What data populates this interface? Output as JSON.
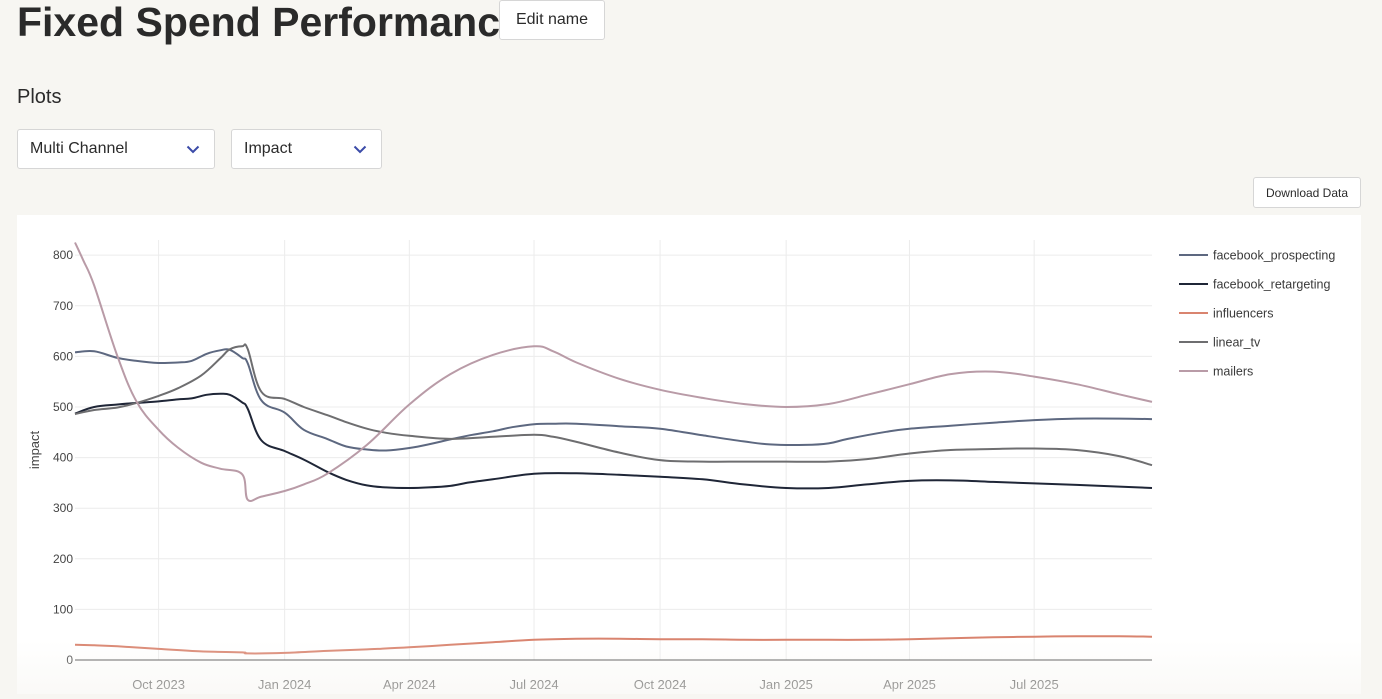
{
  "page": {
    "title": "Fixed Spend Performance",
    "edit_name_label": "Edit name",
    "plots_label": "Plots",
    "download_label": "Download Data"
  },
  "selects": {
    "plot_type": {
      "value": "Multi Channel"
    },
    "metric": {
      "value": "Impact"
    }
  },
  "colors": {
    "accent_chevron": "#3b4ba8"
  },
  "chart_data": {
    "type": "line",
    "ylabel": "impact",
    "xlabel": "",
    "ylim": [
      0,
      830
    ],
    "yticks": [
      0,
      100,
      200,
      300,
      400,
      500,
      600,
      700,
      800
    ],
    "xticks": [
      "Oct 2023",
      "Jan 2024",
      "Apr 2024",
      "Jul 2024",
      "Oct 2024",
      "Jan 2025",
      "Apr 2025",
      "Jul 2025"
    ],
    "x_range": [
      "2023-08-01",
      "2025-09-25"
    ],
    "grid": true,
    "legend_position": "right",
    "series": [
      {
        "name": "facebook_prospecting",
        "color": "#5d6880",
        "x": [
          "2023-08-01",
          "2023-08-15",
          "2023-09-01",
          "2023-09-15",
          "2023-10-01",
          "2023-10-15",
          "2023-10-25",
          "2023-11-05",
          "2023-11-15",
          "2023-11-22",
          "2023-12-01",
          "2023-12-05",
          "2023-12-15",
          "2024-01-01",
          "2024-01-15",
          "2024-02-01",
          "2024-02-15",
          "2024-03-01",
          "2024-03-15",
          "2024-04-01",
          "2024-04-15",
          "2024-05-01",
          "2024-05-15",
          "2024-06-01",
          "2024-06-15",
          "2024-07-01",
          "2024-07-15",
          "2024-08-01",
          "2024-09-01",
          "2024-10-01",
          "2024-11-01",
          "2024-12-01",
          "2024-12-20",
          "2025-01-15",
          "2025-02-01",
          "2025-02-15",
          "2025-03-15",
          "2025-04-01",
          "2025-05-01",
          "2025-06-01",
          "2025-07-01",
          "2025-08-01",
          "2025-09-01",
          "2025-09-25"
        ],
        "values": [
          608,
          610,
          597,
          591,
          587,
          588,
          591,
          605,
          612,
          613,
          597,
          587,
          513,
          489,
          455,
          437,
          422,
          416,
          414,
          419,
          426,
          436,
          444,
          452,
          460,
          466,
          467,
          467,
          462,
          457,
          444,
          432,
          426,
          425,
          428,
          437,
          451,
          457,
          463,
          469,
          474,
          477,
          477,
          476
        ]
      },
      {
        "name": "facebook_retargeting",
        "color": "#1f2637",
        "x": [
          "2023-08-01",
          "2023-08-15",
          "2023-09-01",
          "2023-09-15",
          "2023-10-01",
          "2023-10-15",
          "2023-10-25",
          "2023-11-05",
          "2023-11-15",
          "2023-11-22",
          "2023-12-01",
          "2023-12-05",
          "2023-12-15",
          "2024-01-01",
          "2024-01-15",
          "2024-02-01",
          "2024-02-15",
          "2024-03-01",
          "2024-03-15",
          "2024-04-01",
          "2024-04-15",
          "2024-05-01",
          "2024-05-15",
          "2024-06-01",
          "2024-07-01",
          "2024-08-01",
          "2024-09-01",
          "2024-10-01",
          "2024-11-01",
          "2024-12-01",
          "2025-01-01",
          "2025-02-01",
          "2025-03-01",
          "2025-04-01",
          "2025-05-01",
          "2025-06-01",
          "2025-07-01",
          "2025-08-01",
          "2025-09-25"
        ],
        "values": [
          487,
          500,
          505,
          508,
          511,
          515,
          517,
          524,
          526,
          524,
          509,
          497,
          434,
          413,
          396,
          372,
          356,
          345,
          341,
          340,
          341,
          344,
          351,
          357,
          368,
          369,
          366,
          362,
          357,
          347,
          340,
          340,
          347,
          354,
          355,
          352,
          349,
          346,
          340
        ]
      },
      {
        "name": "influencers",
        "color": "#d9846f",
        "x": [
          "2023-08-01",
          "2023-08-15",
          "2023-09-01",
          "2023-10-01",
          "2023-11-01",
          "2023-12-01",
          "2023-12-05",
          "2024-01-01",
          "2024-02-01",
          "2024-03-01",
          "2024-04-01",
          "2024-05-01",
          "2024-06-01",
          "2024-07-01",
          "2024-08-01",
          "2024-09-01",
          "2024-10-01",
          "2024-11-01",
          "2024-12-01",
          "2025-01-01",
          "2025-02-01",
          "2025-03-01",
          "2025-04-01",
          "2025-05-01",
          "2025-06-01",
          "2025-07-01",
          "2025-08-01",
          "2025-09-01",
          "2025-09-25"
        ],
        "values": [
          30,
          29,
          27,
          22,
          17,
          15,
          13,
          14,
          18,
          21,
          25,
          30,
          35,
          40,
          42,
          42,
          41,
          41,
          40,
          40,
          40,
          40,
          41,
          43,
          45,
          46,
          47,
          47,
          46
        ]
      },
      {
        "name": "linear_tv",
        "color": "#6e6e70",
        "x": [
          "2023-08-01",
          "2023-08-15",
          "2023-09-01",
          "2023-09-15",
          "2023-10-01",
          "2023-10-15",
          "2023-11-01",
          "2023-11-15",
          "2023-11-22",
          "2023-12-01",
          "2023-12-05",
          "2023-12-15",
          "2024-01-01",
          "2024-01-15",
          "2024-02-01",
          "2024-02-15",
          "2024-03-01",
          "2024-03-15",
          "2024-04-01",
          "2024-05-01",
          "2024-06-01",
          "2024-07-01",
          "2024-07-15",
          "2024-08-01",
          "2024-09-01",
          "2024-10-01",
          "2024-11-01",
          "2024-12-01",
          "2025-01-01",
          "2025-02-01",
          "2025-03-01",
          "2025-04-01",
          "2025-05-01",
          "2025-06-01",
          "2025-07-01",
          "2025-08-01",
          "2025-09-01",
          "2025-09-25"
        ],
        "values": [
          486,
          494,
          499,
          508,
          522,
          537,
          562,
          596,
          614,
          620,
          615,
          530,
          516,
          500,
          484,
          470,
          457,
          449,
          443,
          437,
          441,
          445,
          441,
          431,
          410,
          395,
          392,
          392,
          392,
          392,
          397,
          408,
          415,
          417,
          418,
          415,
          403,
          385
        ]
      },
      {
        "name": "mailers",
        "color": "#b99ba7",
        "x": [
          "2023-08-01",
          "2023-08-07",
          "2023-08-15",
          "2023-09-01",
          "2023-09-15",
          "2023-10-01",
          "2023-10-15",
          "2023-11-01",
          "2023-11-15",
          "2023-12-01",
          "2023-12-05",
          "2023-12-15",
          "2024-01-01",
          "2024-01-15",
          "2024-02-01",
          "2024-03-01",
          "2024-04-01",
          "2024-05-01",
          "2024-06-01",
          "2024-07-01",
          "2024-07-15",
          "2024-08-01",
          "2024-09-01",
          "2024-10-01",
          "2024-11-01",
          "2024-12-01",
          "2025-01-01",
          "2025-02-01",
          "2025-03-01",
          "2025-04-01",
          "2025-05-01",
          "2025-06-01",
          "2025-07-01",
          "2025-08-01",
          "2025-09-01",
          "2025-09-25"
        ],
        "values": [
          825,
          790,
          740,
          600,
          510,
          455,
          420,
          390,
          378,
          367,
          317,
          323,
          334,
          347,
          368,
          425,
          505,
          565,
          603,
          620,
          610,
          588,
          556,
          534,
          518,
          506,
          500,
          506,
          524,
          545,
          565,
          570,
          560,
          545,
          525,
          510
        ]
      }
    ]
  }
}
